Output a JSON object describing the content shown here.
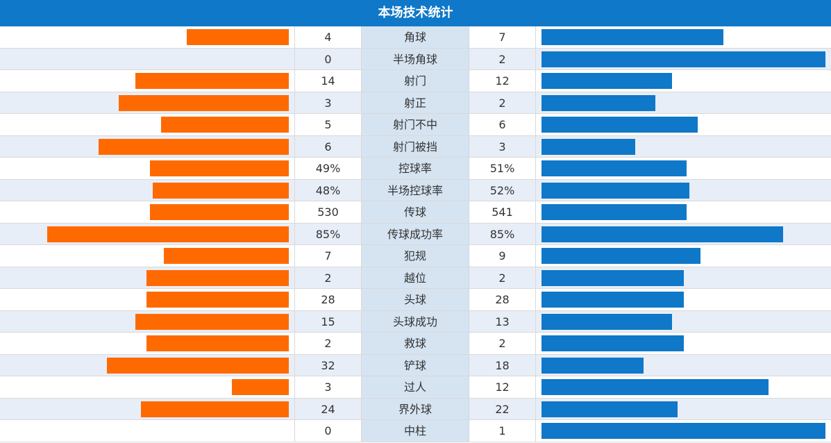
{
  "title": "本场技术统计",
  "colors": {
    "header": "#0f78c8",
    "left_bar": "#ff6a00",
    "right_bar": "#0f78c8"
  },
  "stats": [
    {
      "label": "角球",
      "left": "4",
      "right": "7",
      "left_ratio": 0.36,
      "right_ratio": 0.64
    },
    {
      "label": "半场角球",
      "left": "0",
      "right": "2",
      "left_ratio": 0.0,
      "right_ratio": 1.0
    },
    {
      "label": "射门",
      "left": "14",
      "right": "12",
      "left_ratio": 0.54,
      "right_ratio": 0.46
    },
    {
      "label": "射正",
      "left": "3",
      "right": "2",
      "left_ratio": 0.6,
      "right_ratio": 0.4
    },
    {
      "label": "射门不中",
      "left": "5",
      "right": "6",
      "left_ratio": 0.45,
      "right_ratio": 0.55
    },
    {
      "label": "射门被挡",
      "left": "6",
      "right": "3",
      "left_ratio": 0.67,
      "right_ratio": 0.33
    },
    {
      "label": "控球率",
      "left": "49%",
      "right": "51%",
      "left_ratio": 0.49,
      "right_ratio": 0.51
    },
    {
      "label": "半场控球率",
      "left": "48%",
      "right": "52%",
      "left_ratio": 0.48,
      "right_ratio": 0.52
    },
    {
      "label": "传球",
      "left": "530",
      "right": "541",
      "left_ratio": 0.49,
      "right_ratio": 0.51
    },
    {
      "label": "传球成功率",
      "left": "85%",
      "right": "85%",
      "left_ratio": 0.85,
      "right_ratio": 0.85
    },
    {
      "label": "犯规",
      "left": "7",
      "right": "9",
      "left_ratio": 0.44,
      "right_ratio": 0.56
    },
    {
      "label": "越位",
      "left": "2",
      "right": "2",
      "left_ratio": 0.5,
      "right_ratio": 0.5
    },
    {
      "label": "头球",
      "left": "28",
      "right": "28",
      "left_ratio": 0.5,
      "right_ratio": 0.5
    },
    {
      "label": "头球成功",
      "left": "15",
      "right": "13",
      "left_ratio": 0.54,
      "right_ratio": 0.46
    },
    {
      "label": "救球",
      "left": "2",
      "right": "2",
      "left_ratio": 0.5,
      "right_ratio": 0.5
    },
    {
      "label": "铲球",
      "left": "32",
      "right": "18",
      "left_ratio": 0.64,
      "right_ratio": 0.36
    },
    {
      "label": "过人",
      "left": "3",
      "right": "12",
      "left_ratio": 0.2,
      "right_ratio": 0.8
    },
    {
      "label": "界外球",
      "left": "24",
      "right": "22",
      "left_ratio": 0.52,
      "right_ratio": 0.48
    },
    {
      "label": "中柱",
      "left": "0",
      "right": "1",
      "left_ratio": 0.0,
      "right_ratio": 1.0
    }
  ]
}
